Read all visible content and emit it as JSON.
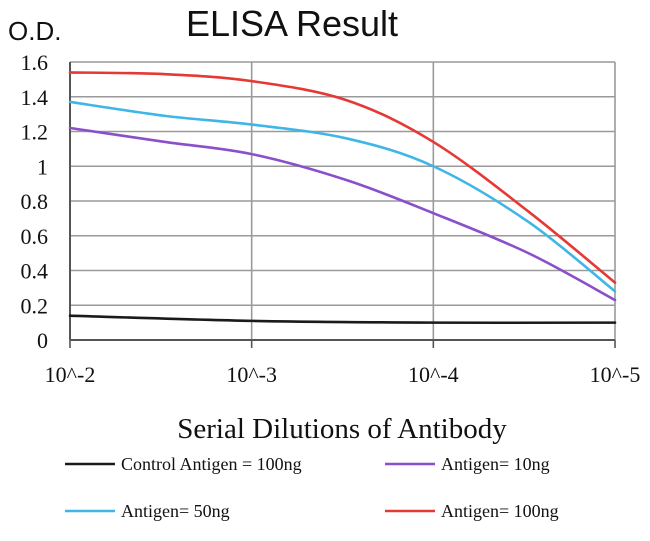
{
  "chart_data": {
    "type": "line",
    "title": "ELISA Result",
    "ylabel": "O.D.",
    "xlabel": "Serial Dilutions of Antibody",
    "x_tick_labels": [
      "10^-2",
      "10^-3",
      "10^-4",
      "10^-5"
    ],
    "x": [
      0.01,
      0.001,
      0.0001,
      1e-05
    ],
    "x_scale": "log (decreasing)",
    "y_tick_labels": [
      "0",
      "0.2",
      "0.4",
      "0.6",
      "0.8",
      "1",
      "1.2",
      "1.4",
      "1.6"
    ],
    "ylim": [
      0,
      1.6
    ],
    "grid": true,
    "legend_position": "bottom",
    "series": [
      {
        "name": "Control Antigen = 100ng",
        "color": "#1a1a1a",
        "points": [
          [
            0.01,
            0.14
          ],
          [
            0.001,
            0.11
          ],
          [
            0.0001,
            0.1
          ],
          [
            1e-05,
            0.1
          ]
        ]
      },
      {
        "name": "Antigen= 10ng",
        "color": "#8a4fc9",
        "points": [
          [
            0.01,
            1.22
          ],
          [
            0.003,
            1.14
          ],
          [
            0.001,
            1.07
          ],
          [
            0.0003,
            0.92
          ],
          [
            0.0001,
            0.73
          ],
          [
            3e-05,
            0.5
          ],
          [
            1e-05,
            0.23
          ]
        ]
      },
      {
        "name": "Antigen= 50ng",
        "color": "#3fb6e6",
        "points": [
          [
            0.01,
            1.37
          ],
          [
            0.003,
            1.29
          ],
          [
            0.001,
            1.24
          ],
          [
            0.0003,
            1.16
          ],
          [
            0.0001,
            1.0
          ],
          [
            3e-05,
            0.68
          ],
          [
            1e-05,
            0.28
          ]
        ]
      },
      {
        "name": "Antigen= 100ng",
        "color": "#e53935",
        "points": [
          [
            0.01,
            1.54
          ],
          [
            0.003,
            1.53
          ],
          [
            0.001,
            1.49
          ],
          [
            0.0003,
            1.38
          ],
          [
            0.0001,
            1.14
          ],
          [
            3e-05,
            0.74
          ],
          [
            1e-05,
            0.33
          ]
        ]
      }
    ]
  }
}
